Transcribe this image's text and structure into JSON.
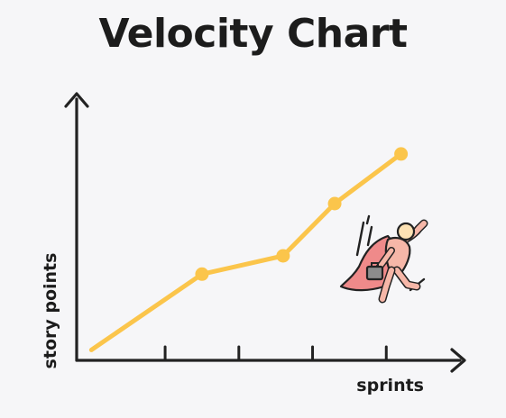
{
  "page": {
    "title": "Velocity Chart"
  },
  "chart_data": {
    "type": "line",
    "title": "Velocity Chart",
    "xlabel": "sprints",
    "ylabel": "story points",
    "x": [
      0,
      1.5,
      2.6,
      3.3,
      4.2
    ],
    "series": [
      {
        "values": [
          0.4,
          3.3,
          4.0,
          6.0,
          7.9
        ],
        "markers": [
          false,
          true,
          true,
          true,
          true
        ]
      }
    ],
    "xlim": [
      -0.2,
      5.0
    ],
    "ylim": [
      0,
      10
    ],
    "x_ticks": [
      1,
      2,
      3,
      4
    ],
    "tick_labels_shown": false,
    "grid": false,
    "legend": "none",
    "colors": {
      "line": "#fbc54b",
      "axis": "#222222",
      "cape": "#ef8a8a",
      "body": "#f6b7a8",
      "head": "#fde2b4",
      "briefcase": "#8c8c8c"
    },
    "decoration_icon": "superhero-flying-with-briefcase-icon"
  }
}
